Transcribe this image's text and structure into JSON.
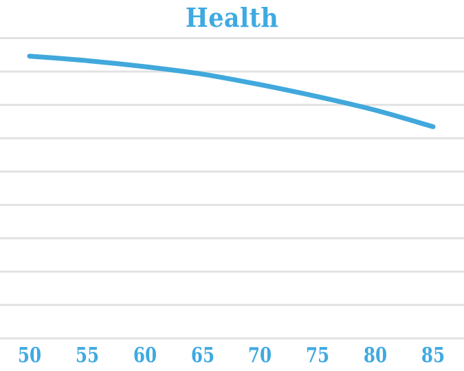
{
  "title": "Health",
  "colors": {
    "accent_text": "#3fa9e1",
    "line": "#41a8dc",
    "gridline": "#e2e2e2",
    "background": "#ffffff"
  },
  "chart_data": {
    "type": "line",
    "title": "Health",
    "x": [
      50,
      55,
      60,
      65,
      70,
      75,
      80,
      85
    ],
    "x_tick_labels": [
      "50",
      "55",
      "60",
      "65",
      "70",
      "75",
      "80",
      "85"
    ],
    "series": [
      {
        "name": "Health",
        "values": [
          94,
          92.5,
          90.5,
          88,
          84.5,
          80.5,
          76,
          70.5
        ]
      }
    ],
    "xlabel": "",
    "ylabel": "",
    "ylim": [
      0,
      100
    ],
    "y_tick_labels_visible": false,
    "gridlines": "horizontal",
    "gridline_count": 10,
    "legend": "none",
    "line_width": 7
  }
}
